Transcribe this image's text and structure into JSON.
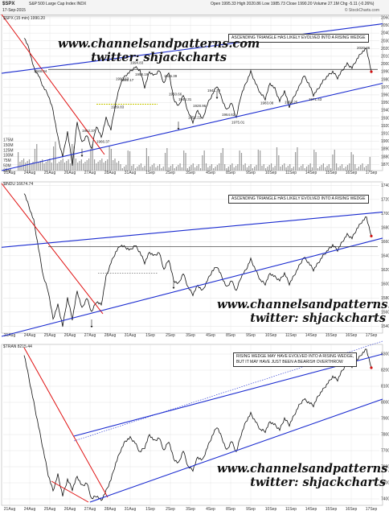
{
  "header": {
    "symbol": "$SPX",
    "name": "S&P 500 Large Cap Index INDX",
    "date": "17-Sep-2015",
    "ohlc": "Open 1995.33  High 2020.86  Low 1985.73  Close 1990.20  Volume 27.1M  Chg -5.11 (-0.26%)",
    "credit": "© StockCharts.com"
  },
  "labels": {
    "panel1": "$SPX (15 min) 1990.20",
    "panel2": "$INDU 16674.74",
    "panel3": "$TRAN 8215.44",
    "callout1": "ASCENDING TRIANGLE HAS LIKELY EVOLVED INTO A RISING WEDGE",
    "callout2": "ASCENDING TRIANGLE HAS LIKELY EVOLVED INTO A RISING WEDGE",
    "callout3_line1": "RISING WEDGE MAY HAVE EVOLVED INTO A RISING WEDGE,",
    "callout3_line2": "BUT IT MAY HAVE JUST BEEN A BEARISH OVERTHROW"
  },
  "watermark": {
    "site": "www.channelsandpatterns.com",
    "twitter": "twitter: shjackcharts"
  },
  "colors": {
    "price": "#111111",
    "trend_red": "#e01010",
    "trend_blue": "#1a2bd0",
    "resistance": "#2a2a2a",
    "volume": "#7a7a7a",
    "grid": "#e2e2e2",
    "highlight": "#c8c800"
  },
  "chart_data": [
    {
      "type": "line",
      "title": "$SPX (15 min) 1990.20",
      "x_ticks": [
        "21Aug",
        "24Aug",
        "25Aug",
        "26Aug",
        "27Aug",
        "28Aug",
        "31Aug",
        "1Sep",
        "2Sep",
        "3Sep",
        "4Sep",
        "8Sep",
        "9Sep",
        "10Sep",
        "11Sep",
        "14Sep",
        "15Sep",
        "16Sep",
        "17Sep"
      ],
      "y_ticks": [
        1870,
        1880,
        1890,
        1900,
        1910,
        1920,
        1930,
        1940,
        1950,
        1960,
        1970,
        1980,
        1990,
        2000,
        2010,
        2020,
        2030,
        2040,
        2050,
        2060
      ],
      "ylim": [
        1862,
        2062
      ],
      "volume_ticks": [
        "175M",
        "150M",
        "125M",
        "100M",
        "75M",
        "50M",
        "25M"
      ],
      "annotations": [
        "1948.04",
        "1989.83",
        "1990.63",
        "1992.17",
        "1994.83",
        "1998.19",
        "1962.37",
        "1966.37",
        "1950.66",
        "1944.31",
        "1928.96",
        "1975.01",
        "1993.25",
        "1964.62",
        "1952.22",
        "1925.39",
        "1941.73",
        "1983.08",
        "2020.86",
        "1971.43"
      ],
      "series": [
        {
          "name": "$SPX",
          "values": [
            2035,
            2020,
            1995,
            1985,
            1970,
            1960,
            1940,
            1905,
            1880,
            1912,
            1870,
            1925,
            1898,
            1908,
            1890,
            1920,
            1905,
            1930,
            1915,
            1950,
            1975,
            1985,
            1990,
            1996,
            1992,
            1970,
            1990,
            1985,
            1992,
            1975,
            1990,
            1955,
            1945,
            1960,
            1938,
            1925,
            1940,
            1928,
            1948,
            1960,
            1972,
            1955,
            1940,
            1950,
            1930,
            1960,
            1975,
            1990,
            1975,
            1962,
            1955,
            1975,
            1968,
            1952,
            1965,
            1945,
            1958,
            1970,
            1985,
            1975,
            1960,
            1968,
            1978,
            1985,
            1990,
            1982,
            1992,
            2000,
            1995,
            2006,
            2015,
            2020,
            1990
          ]
        }
      ],
      "trendlines": [
        "ascending triangle resistance ~1993",
        "rising wedge upper",
        "rising wedge support",
        "falling red channel"
      ]
    },
    {
      "type": "line",
      "title": "$INDU 16674.74",
      "y_ticks": [
        15400,
        15600,
        15800,
        16000,
        16200,
        16400,
        16600,
        16800,
        17000,
        17200,
        17400
      ],
      "ylim": [
        15300,
        17450
      ],
      "annotations": [],
      "series": [
        {
          "name": "$INDU",
          "values": [
            17300,
            17100,
            16900,
            16500,
            16100,
            15900,
            15500,
            15700,
            15400,
            15800,
            15500,
            15900,
            15650,
            15800,
            15600,
            15750,
            15700,
            16100,
            16300,
            16450,
            16550,
            16520,
            16480,
            16550,
            16450,
            16300,
            16450,
            16400,
            16450,
            16200,
            16350,
            16050,
            16000,
            16150,
            15950,
            15850,
            15980,
            15900,
            16050,
            16180,
            16250,
            16100,
            15950,
            16050,
            15900,
            16100,
            16200,
            16350,
            16200,
            16050,
            16000,
            16150,
            16100,
            16050,
            16150,
            16000,
            16120,
            16250,
            16380,
            16300,
            16200,
            16300,
            16400,
            16480,
            16550,
            16480,
            16600,
            16700,
            16650,
            16780,
            16880,
            16950,
            16680
          ]
        }
      ]
    },
    {
      "type": "line",
      "title": "$TRAN 8215.44",
      "y_ticks": [
        7400,
        7500,
        7600,
        7700,
        7800,
        7900,
        8000,
        8100,
        8200,
        8300
      ],
      "ylim": [
        7360,
        8360
      ],
      "annotations": [],
      "series": [
        {
          "name": "$TRAN",
          "values": [
            8300,
            8150,
            8000,
            7850,
            7700,
            7550,
            7450,
            7550,
            7420,
            7520,
            7460,
            7540,
            7480,
            7500,
            7400,
            7420,
            7390,
            7450,
            7520,
            7620,
            7700,
            7760,
            7780,
            7750,
            7690,
            7720,
            7800,
            7760,
            7780,
            7700,
            7760,
            7650,
            7620,
            7700,
            7600,
            7580,
            7660,
            7640,
            7720,
            7790,
            7850,
            7780,
            7700,
            7760,
            7690,
            7800,
            7880,
            7930,
            7880,
            7830,
            7820,
            7880,
            7860,
            7830,
            7900,
            7860,
            7920,
            7980,
            8020,
            8000,
            7980,
            8040,
            8080,
            8120,
            8160,
            8140,
            8200,
            8240,
            8220,
            8260,
            8300,
            8330,
            8215
          ]
        }
      ]
    }
  ]
}
